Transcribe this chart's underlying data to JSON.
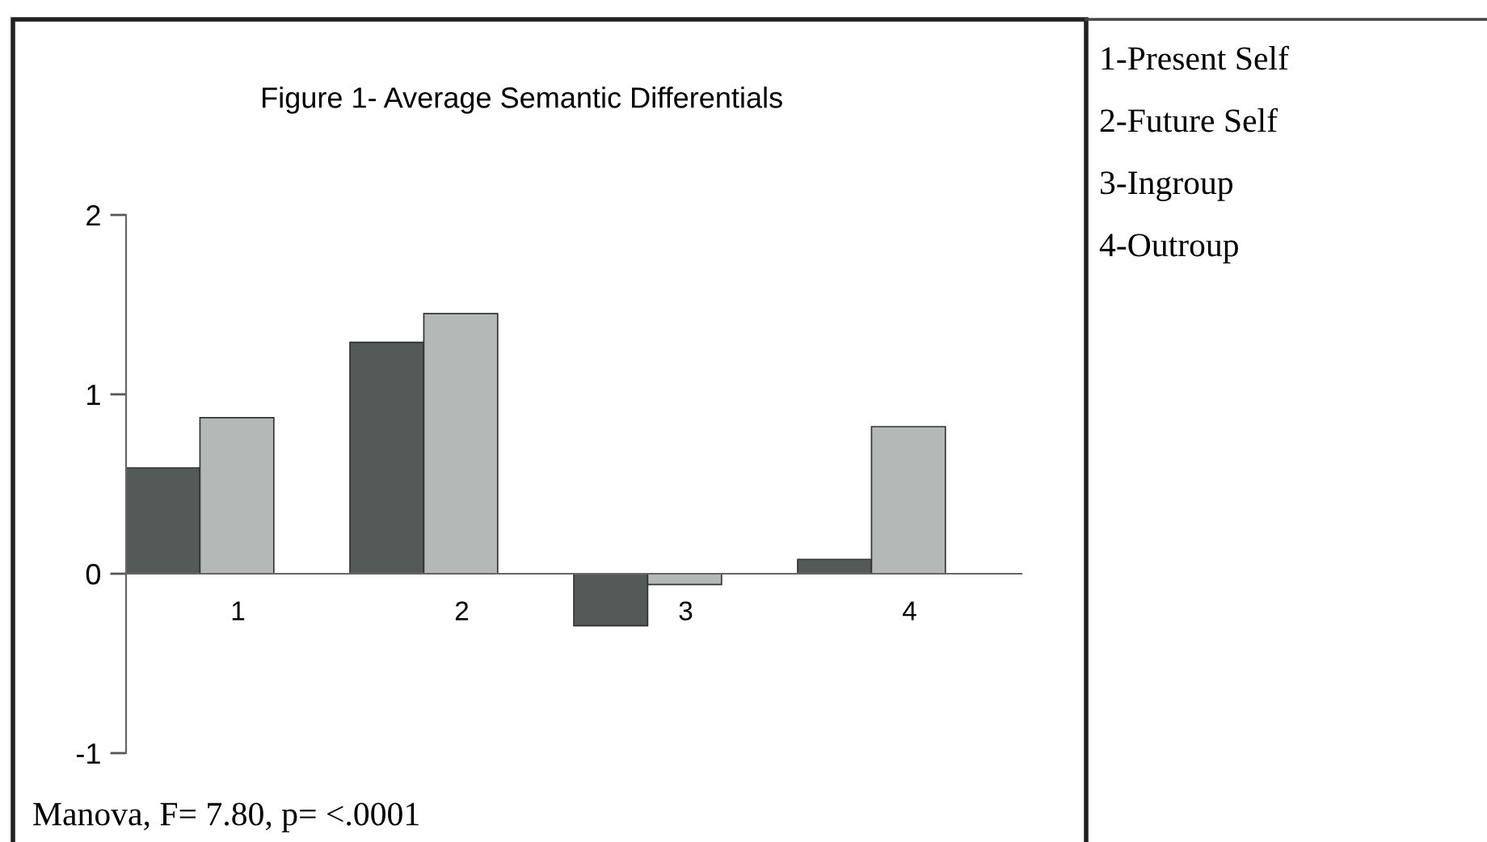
{
  "chart_data": {
    "type": "bar",
    "title": "Figure 1- Average Semantic Differentials",
    "categories": [
      "1",
      "2",
      "3",
      "4"
    ],
    "series": [
      {
        "color": "#545a58",
        "values": [
          0.59,
          1.29,
          -0.29,
          0.08
        ]
      },
      {
        "color": "#b4b8b6",
        "values": [
          0.87,
          1.45,
          -0.06,
          0.82
        ]
      }
    ],
    "ylim": [
      -1,
      2
    ],
    "yticks": [
      -1,
      0,
      1,
      2
    ],
    "grid": false,
    "legend": false,
    "annotations": [
      "1-Present Self",
      "2-Future Self",
      "3-Ingroup",
      "4-Outroup",
      "Manova, F= 7.80, p= <.0001"
    ]
  }
}
